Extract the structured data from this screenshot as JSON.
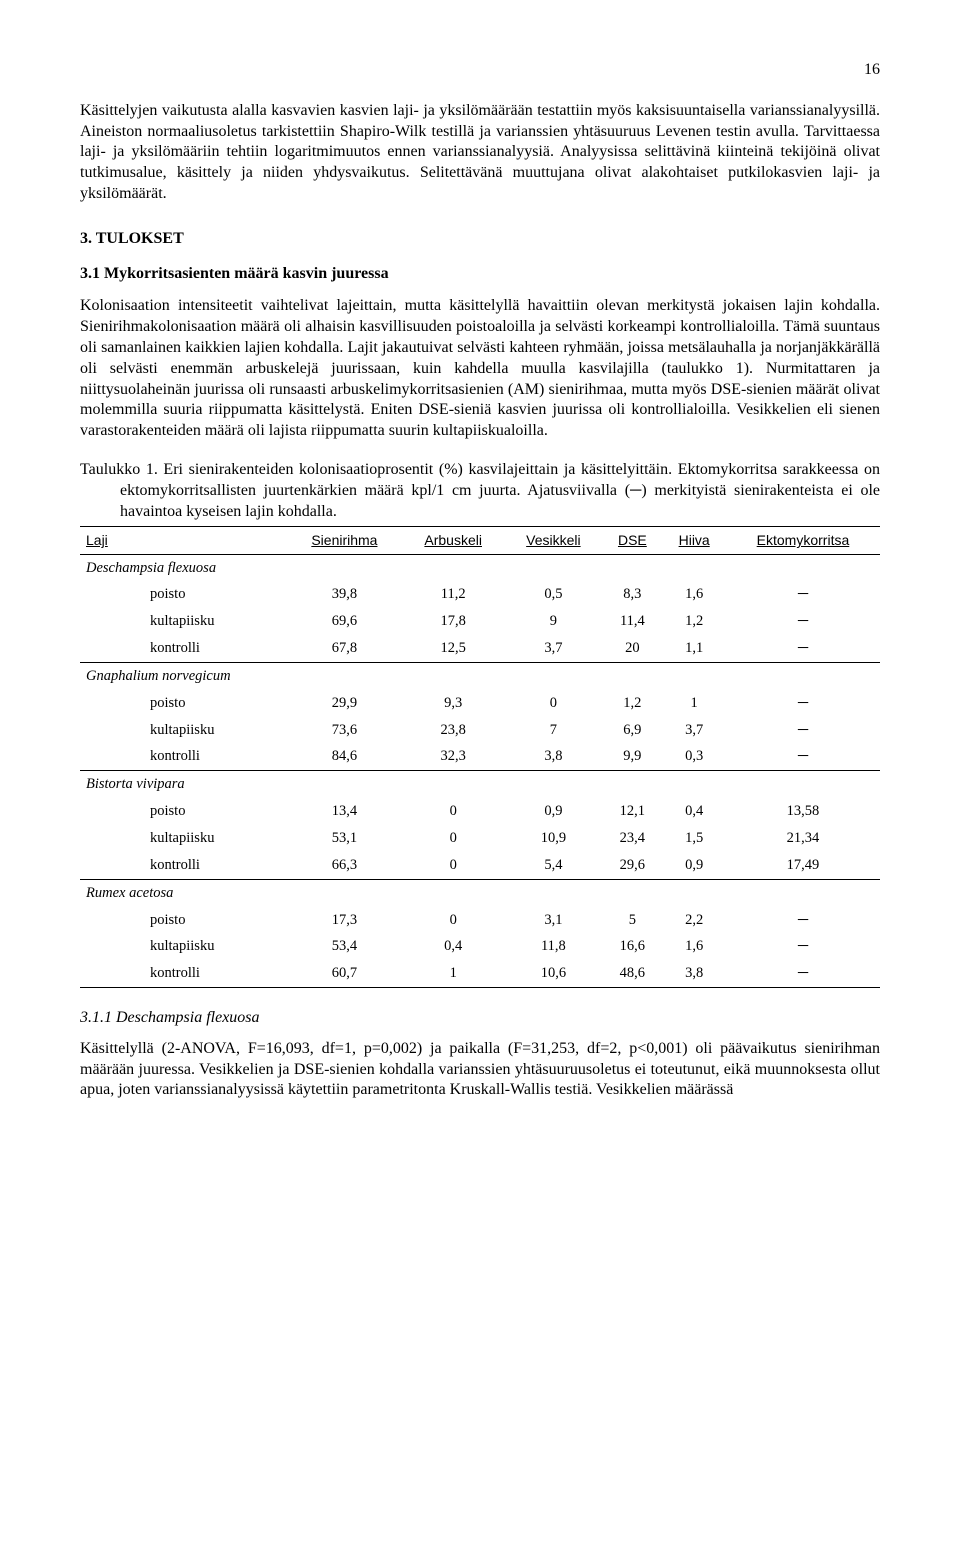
{
  "page_number": "16",
  "para1": "Käsittelyjen vaikutusta alalla kasvavien kasvien laji- ja yksilömäärään testattiin myös kaksisuuntaisella varianssianalyysillä. Aineiston normaaliusoletus tarkistettiin Shapiro-Wilk testillä ja varianssien yhtäsuuruus Levenen testin avulla. Tarvittaessa laji- ja yksilömääriin tehtiin logaritmimuutos ennen varianssianalyysiä. Analyysissa selittävinä kiinteinä tekijöinä olivat tutkimusalue, käsittely ja niiden yhdysvaikutus. Selitettävänä muuttujana olivat alakohtaiset putkilokasvien laji- ja yksilömäärät.",
  "section3": "3. TULOKSET",
  "sub31": "3.1 Mykorritsasienten määrä kasvin juuressa",
  "para2": "Kolonisaation intensiteetit vaihtelivat lajeittain, mutta käsittelyllä havaittiin olevan merkitystä jokaisen lajin kohdalla. Sienirihmakolonisaation määrä oli alhaisin kasvillisuuden poistoaloilla ja selvästi korkeampi kontrollialoilla. Tämä suuntaus oli samanlainen kaikkien lajien kohdalla. Lajit jakautuivat selvästi kahteen ryhmään, joissa metsälauhalla ja norjanjäkkärällä oli selvästi enemmän arbuskelejä juurissaan, kuin kahdella muulla kasvilajilla (taulukko 1). Nurmitattaren ja niittysuolaheinän juurissa oli runsaasti arbuskelimykorritsasienien (AM) sienirihmaa, mutta myös DSE-sienien määrät olivat molemmilla suuria riippumatta käsittelystä. Eniten DSE-sieniä kasvien juurissa oli kontrollialoilla. Vesikkelien eli sienen varastorakenteiden määrä oli lajista riippumatta suurin kultapiiskualoilla.",
  "table_caption": "Taulukko 1. Eri sienirakenteiden kolonisaatioprosentit (%) kasvilajeittain ja käsittelyittäin. Ektomykorritsa sarakkeessa on ektomykorritsallisten juurtenkärkien määrä kpl/1 cm juurta. Ajatusviivalla (─) merkityistä sienirakenteista ei ole havaintoa kyseisen lajin kohdalla.",
  "columns": [
    "Laji",
    "Sienirihma",
    "Arbuskeli",
    "Vesikkeli",
    "DSE",
    "Hiiva",
    "Ektomykorritsa"
  ],
  "species": [
    {
      "name": "Deschampsia flexuosa",
      "rows": [
        {
          "label": "poisto",
          "v": [
            "39,8",
            "11,2",
            "0,5",
            "8,3",
            "1,6",
            "─"
          ]
        },
        {
          "label": "kultapiisku",
          "v": [
            "69,6",
            "17,8",
            "9",
            "11,4",
            "1,2",
            "─"
          ]
        },
        {
          "label": "kontrolli",
          "v": [
            "67,8",
            "12,5",
            "3,7",
            "20",
            "1,1",
            "─"
          ]
        }
      ]
    },
    {
      "name": "Gnaphalium norvegicum",
      "rows": [
        {
          "label": "poisto",
          "v": [
            "29,9",
            "9,3",
            "0",
            "1,2",
            "1",
            "─"
          ]
        },
        {
          "label": "kultapiisku",
          "v": [
            "73,6",
            "23,8",
            "7",
            "6,9",
            "3,7",
            "─"
          ]
        },
        {
          "label": "kontrolli",
          "v": [
            "84,6",
            "32,3",
            "3,8",
            "9,9",
            "0,3",
            "─"
          ]
        }
      ]
    },
    {
      "name": "Bistorta vivipara",
      "rows": [
        {
          "label": "poisto",
          "v": [
            "13,4",
            "0",
            "0,9",
            "12,1",
            "0,4",
            "13,58"
          ]
        },
        {
          "label": "kultapiisku",
          "v": [
            "53,1",
            "0",
            "10,9",
            "23,4",
            "1,5",
            "21,34"
          ]
        },
        {
          "label": "kontrolli",
          "v": [
            "66,3",
            "0",
            "5,4",
            "29,6",
            "0,9",
            "17,49"
          ]
        }
      ]
    },
    {
      "name": "Rumex acetosa",
      "rows": [
        {
          "label": "poisto",
          "v": [
            "17,3",
            "0",
            "3,1",
            "5",
            "2,2",
            "─"
          ]
        },
        {
          "label": "kultapiisku",
          "v": [
            "53,4",
            "0,4",
            "11,8",
            "16,6",
            "1,6",
            "─"
          ]
        },
        {
          "label": "kontrolli",
          "v": [
            "60,7",
            "1",
            "10,6",
            "48,6",
            "3,8",
            "─"
          ]
        }
      ]
    }
  ],
  "sub311": "3.1.1 Deschampsia flexuosa",
  "para3": "Käsittelyllä (2-ANOVA, F=16,093, df=1, p=0,002) ja paikalla (F=31,253, df=2, p<0,001) oli päävaikutus sienirihman määrään juuressa. Vesikkelien ja DSE-sienien kohdalla varianssien yhtäsuuruusoletus ei toteutunut, eikä muunnoksesta ollut apua, joten varianssianalyysissä käytettiin parametritonta Kruskall-Wallis testiä. Vesikkelien määrässä"
}
